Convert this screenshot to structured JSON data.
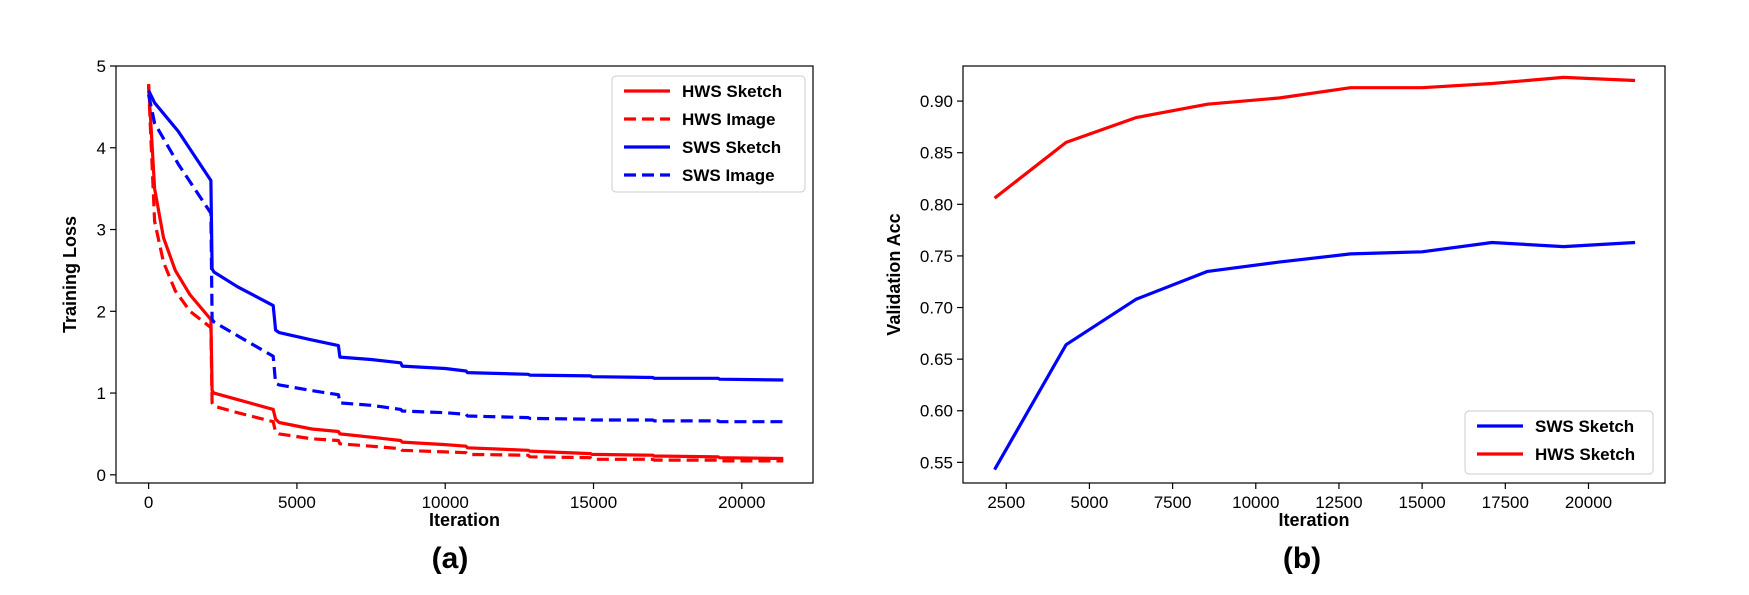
{
  "chart_data": [
    {
      "type": "line",
      "caption": "(a)",
      "xlabel": "Iteration",
      "ylabel": "Training Loss",
      "xlim": [
        -1100,
        22400
      ],
      "ylim": [
        -0.1,
        5.0
      ],
      "xticks": [
        0,
        5000,
        10000,
        15000,
        20000
      ],
      "yticks": [
        0,
        1,
        2,
        3,
        4,
        5
      ],
      "legend_position": "top-right",
      "series": [
        {
          "name": "HWS Sketch",
          "color": "#ff0000",
          "dash": "solid",
          "x": [
            0,
            200,
            500,
            900,
            1400,
            2100,
            2140,
            2200,
            3000,
            4200,
            4280,
            4400,
            5500,
            6400,
            6450,
            7500,
            8500,
            8550,
            10000,
            10700,
            10750,
            12800,
            12850,
            14900,
            14950,
            17000,
            17050,
            19200,
            19250,
            21400
          ],
          "y": [
            4.78,
            3.5,
            2.9,
            2.5,
            2.2,
            1.9,
            1.03,
            1.0,
            0.92,
            0.8,
            0.68,
            0.64,
            0.56,
            0.53,
            0.5,
            0.46,
            0.42,
            0.4,
            0.37,
            0.35,
            0.33,
            0.3,
            0.29,
            0.26,
            0.25,
            0.24,
            0.23,
            0.22,
            0.21,
            0.2
          ]
        },
        {
          "name": "HWS Image",
          "color": "#ff0000",
          "dash": "dashed",
          "x": [
            0,
            200,
            500,
            900,
            1400,
            2100,
            2140,
            2200,
            3000,
            4200,
            4280,
            4400,
            5500,
            6400,
            6450,
            7500,
            8500,
            8550,
            10000,
            10700,
            10750,
            12800,
            12850,
            14900,
            14950,
            17000,
            17050,
            19200,
            19250,
            21400
          ],
          "y": [
            4.75,
            3.1,
            2.6,
            2.25,
            2.0,
            1.8,
            0.88,
            0.84,
            0.76,
            0.65,
            0.52,
            0.5,
            0.44,
            0.42,
            0.38,
            0.35,
            0.32,
            0.3,
            0.28,
            0.27,
            0.25,
            0.24,
            0.22,
            0.21,
            0.19,
            0.19,
            0.18,
            0.18,
            0.17,
            0.17
          ]
        },
        {
          "name": "SWS Sketch",
          "color": "#0000ff",
          "dash": "solid",
          "x": [
            0,
            200,
            1000,
            2100,
            2140,
            2200,
            3000,
            4200,
            4280,
            4400,
            5500,
            6400,
            6450,
            7500,
            8500,
            8550,
            10000,
            10700,
            10750,
            12800,
            12850,
            14900,
            14950,
            17000,
            17050,
            19200,
            19250,
            21400
          ],
          "y": [
            4.7,
            4.55,
            4.2,
            3.6,
            2.52,
            2.48,
            2.3,
            2.07,
            1.77,
            1.74,
            1.65,
            1.58,
            1.44,
            1.41,
            1.37,
            1.33,
            1.3,
            1.27,
            1.25,
            1.23,
            1.22,
            1.21,
            1.2,
            1.19,
            1.18,
            1.18,
            1.17,
            1.16
          ]
        },
        {
          "name": "SWS Image",
          "color": "#0000ff",
          "dash": "dashed",
          "x": [
            0,
            200,
            1000,
            2100,
            2140,
            2200,
            3000,
            4200,
            4280,
            4400,
            5500,
            6400,
            6450,
            7500,
            8500,
            8550,
            10000,
            10700,
            10750,
            12800,
            12850,
            14900,
            14950,
            17000,
            17050,
            19200,
            19250,
            21400
          ],
          "y": [
            4.65,
            4.3,
            3.8,
            3.2,
            1.9,
            1.87,
            1.7,
            1.45,
            1.12,
            1.1,
            1.03,
            0.98,
            0.88,
            0.85,
            0.8,
            0.78,
            0.76,
            0.74,
            0.72,
            0.7,
            0.69,
            0.68,
            0.67,
            0.67,
            0.66,
            0.66,
            0.65,
            0.65
          ]
        }
      ]
    },
    {
      "type": "line",
      "caption": "(b)",
      "xlabel": "Iteration",
      "ylabel": "Validation Acc",
      "xlim": [
        1200,
        22300
      ],
      "ylim": [
        0.53,
        0.934
      ],
      "xticks": [
        2500,
        5000,
        7500,
        10000,
        12500,
        15000,
        17500,
        20000
      ],
      "yticks": [
        0.55,
        0.6,
        0.65,
        0.7,
        0.75,
        0.8,
        0.85,
        0.9
      ],
      "ytick_labels": [
        "0.55",
        "0.60",
        "0.65",
        "0.70",
        "0.75",
        "0.80",
        "0.85",
        "0.90"
      ],
      "legend_position": "bottom-right",
      "series": [
        {
          "name": "SWS Sketch",
          "color": "#0000ff",
          "dash": "solid",
          "x": [
            2150,
            4300,
            6400,
            8550,
            10700,
            12850,
            15000,
            17100,
            19250,
            21400
          ],
          "y": [
            0.543,
            0.664,
            0.708,
            0.735,
            0.744,
            0.752,
            0.754,
            0.763,
            0.759,
            0.763
          ]
        },
        {
          "name": "HWS Sketch",
          "color": "#ff0000",
          "dash": "solid",
          "x": [
            2150,
            4300,
            6400,
            8550,
            10700,
            12850,
            15000,
            17100,
            19250,
            21400
          ],
          "y": [
            0.806,
            0.86,
            0.884,
            0.897,
            0.903,
            0.913,
            0.913,
            0.917,
            0.923,
            0.92
          ]
        }
      ]
    }
  ]
}
